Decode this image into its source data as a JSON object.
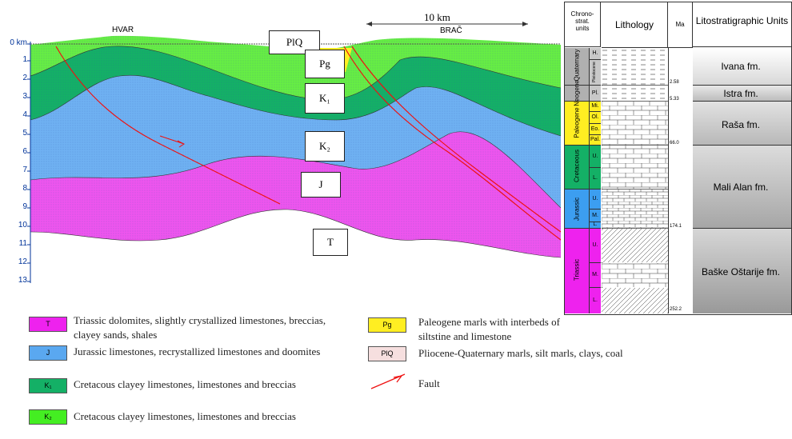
{
  "section": {
    "scale_label": "10 km",
    "place_left": "HVAR",
    "place_right": "BRAČ",
    "depth_ticks": [
      "0 km",
      "1",
      "2",
      "3",
      "4",
      "5",
      "6",
      "7",
      "8",
      "9",
      "10",
      "11",
      "12",
      "13"
    ],
    "boxes": {
      "plq": "PlQ",
      "pg": "Pg",
      "k1": "K₁",
      "k2": "K₂",
      "j": "J",
      "t": "T"
    }
  },
  "column": {
    "headers": {
      "chrono": "Chrono-\nstrat.\nunits",
      "lithology": "Lithology",
      "ma": "Ma",
      "units": "Litostratigraphic Units"
    },
    "periods": [
      "Quaternary",
      "Neogene",
      "Paleogene",
      "Cretaceous",
      "Jurassic",
      "Triassic"
    ],
    "epochs": [
      "H.",
      "Pleistocene",
      "Pl.",
      "Mi.",
      "Ol.",
      "Eo.",
      "Pal.",
      "U.",
      "L.",
      "U.",
      "M.",
      "L.",
      "U.",
      "M.",
      "L."
    ],
    "ages": [
      "2.58",
      "5.33",
      "66.0",
      "174.1",
      "252.2"
    ],
    "formations": [
      "Ivana fm.",
      "Istra fm.",
      "Raša fm.",
      "Mali Alan fm.",
      "Baške Oštarije fm."
    ]
  },
  "legend": {
    "t_label": "T",
    "t_text": "Triassic dolomites, slightly crystallized limestones, breccias, clayey sands, shales",
    "j_label": "J",
    "j_text": "Jurassic limestones, recrystallized limestones and doomites",
    "k1_label": "K₁",
    "k1_text": "Cretacous clayey limestones, limestones and breccias",
    "k2_label": "K₂",
    "k2_text": "Cretacous clayey limestones, limestones and breccias",
    "pg_label": "Pg",
    "pg_text": "Paleogene marls with interbeds of siltstine and limestone",
    "plq_label": "PlQ",
    "plq_text": "Pliocene-Quaternary marls, silt marls, clays, coal",
    "fault_text": "Fault"
  },
  "colors": {
    "triassic": "#ee55ee",
    "jurassic": "#6fb1f2",
    "k1": "#14b066",
    "k2": "#66ee44",
    "paleogene": "#ffee22",
    "plq": "#f3e2c0",
    "fault": "#ee1111"
  }
}
